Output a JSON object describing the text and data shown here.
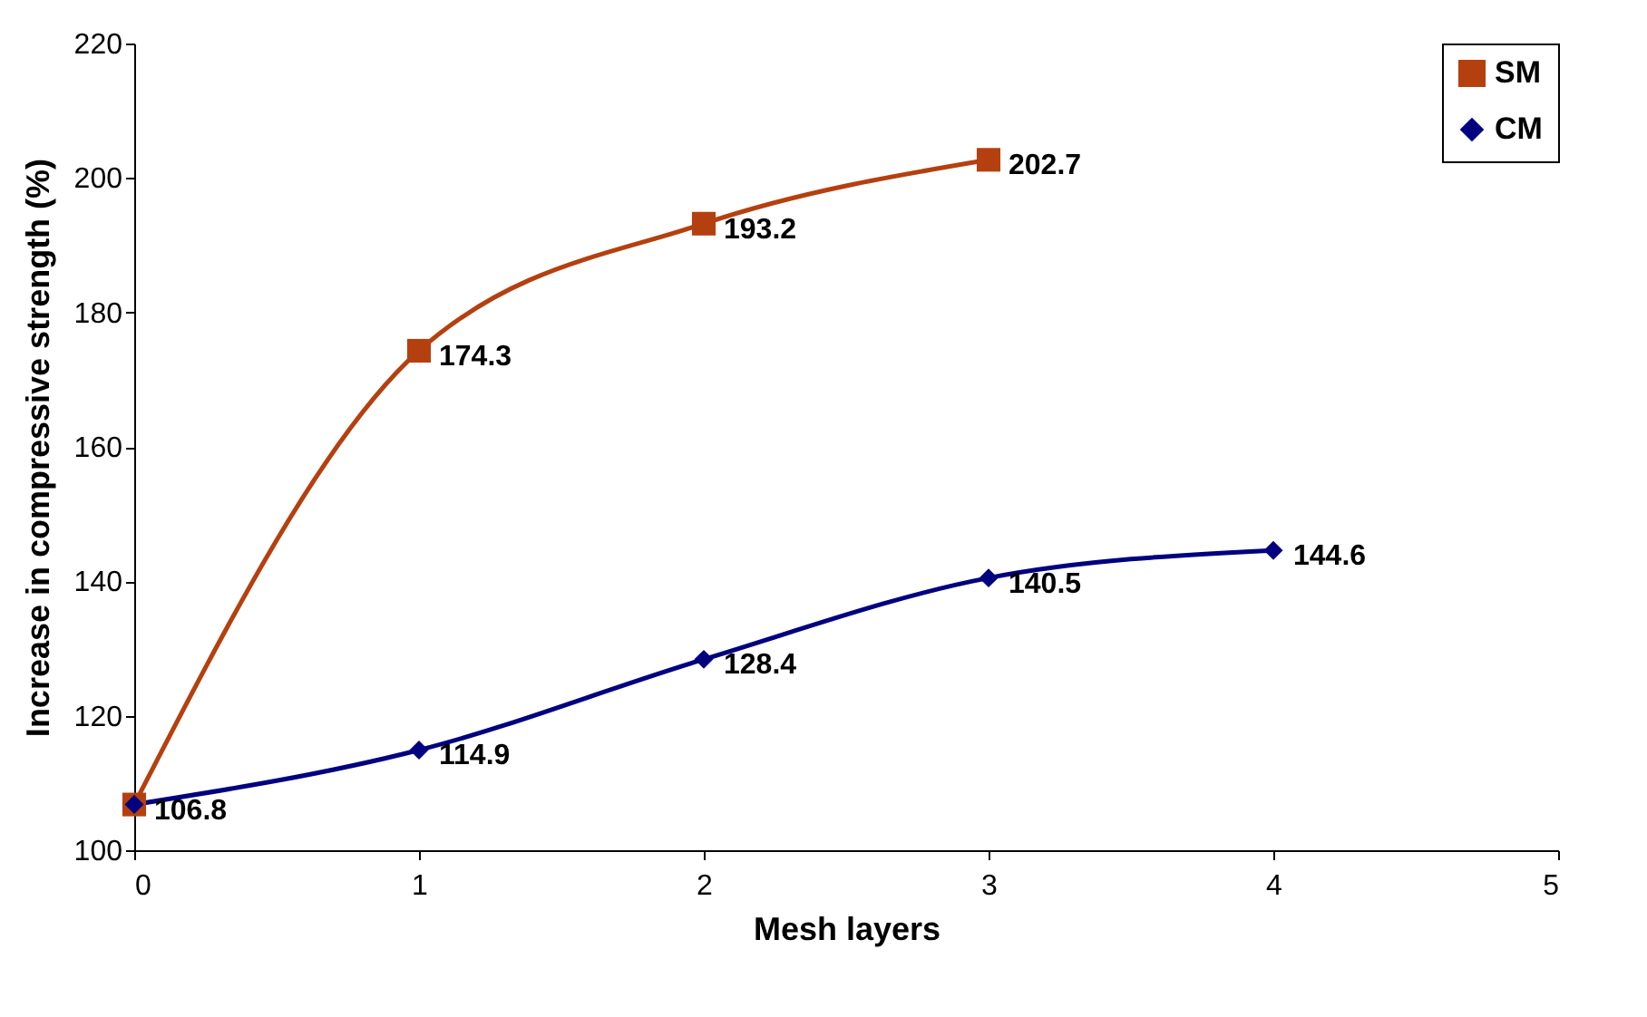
{
  "chart_data": {
    "type": "line",
    "xlabel": "Mesh layers",
    "ylabel": "Increase in compressive strength (%)",
    "xlim": [
      0,
      5
    ],
    "xticks": [
      0,
      1,
      2,
      3,
      4,
      5
    ],
    "ylim": [
      100,
      220
    ],
    "yticks": [
      100,
      120,
      140,
      160,
      180,
      200,
      220
    ],
    "grid": false,
    "legend": "top right",
    "line_style": "solid",
    "series": [
      {
        "name": "SM",
        "color": "#b5400f",
        "marker": "square",
        "x": [
          0,
          1,
          2,
          3
        ],
        "values": [
          106.8,
          174.3,
          193.2,
          202.7
        ],
        "value_labels": [
          null,
          "174.3",
          "193.2",
          "202.7"
        ]
      },
      {
        "name": "CM",
        "color": "#000080",
        "marker": "diamond",
        "x": [
          0,
          1,
          2,
          3,
          4
        ],
        "values": [
          106.8,
          114.9,
          128.4,
          140.5,
          144.6
        ],
        "value_labels": [
          "106.8",
          "114.9",
          "128.4",
          "140.5",
          "144.6"
        ]
      }
    ]
  }
}
